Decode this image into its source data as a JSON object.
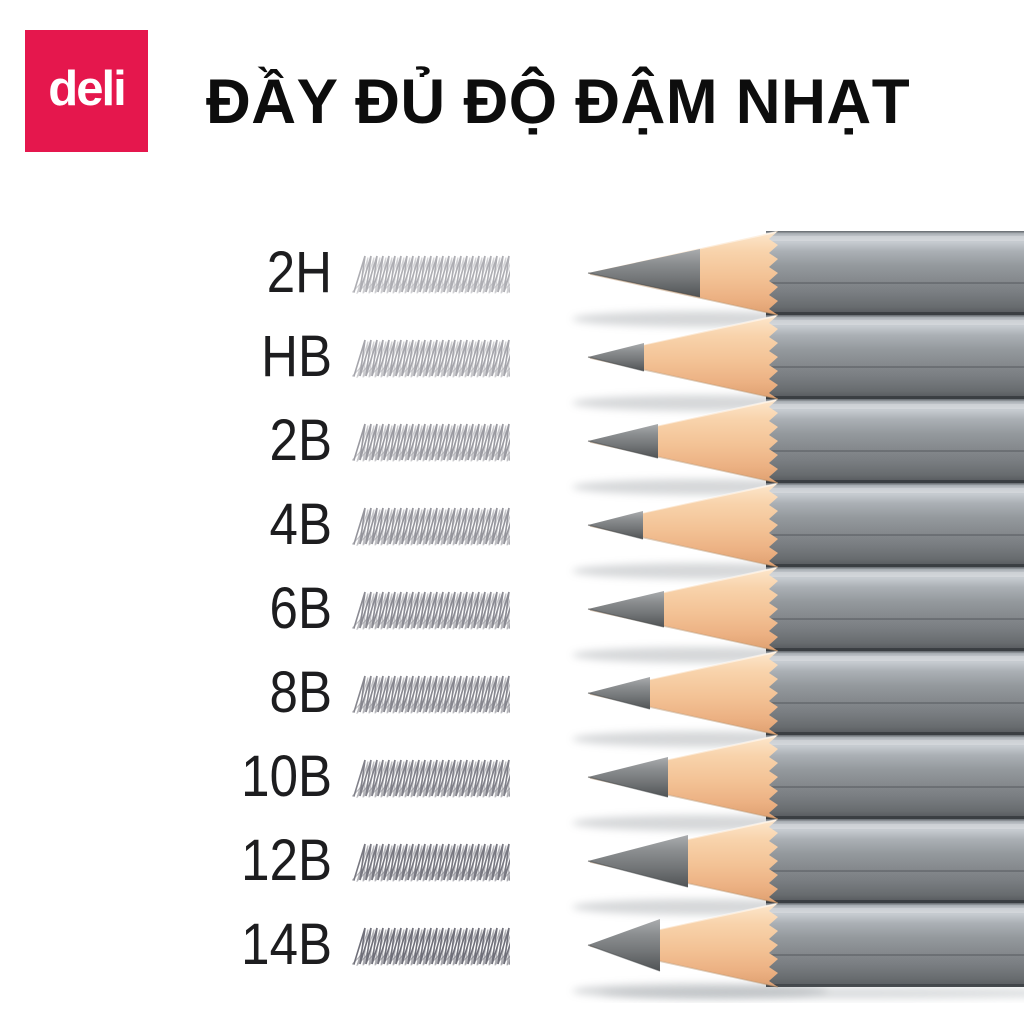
{
  "logo": {
    "text": "deli",
    "bg_color": "#e5174d",
    "text_color": "#ffffff"
  },
  "header": {
    "title": "ĐẦY ĐỦ ĐỘ ĐẬM NHẠT",
    "text_color": "#0d0d0d"
  },
  "rows": [
    {
      "grade": "2H",
      "stroke_darkness": 0.42,
      "tip": {
        "graphite_len": 112,
        "graphite_half": 24
      }
    },
    {
      "grade": "HB",
      "stroke_darkness": 0.46,
      "tip": {
        "graphite_len": 56,
        "graphite_half": 14
      }
    },
    {
      "grade": "2B",
      "stroke_darkness": 0.52,
      "tip": {
        "graphite_len": 70,
        "graphite_half": 17
      }
    },
    {
      "grade": "4B",
      "stroke_darkness": 0.55,
      "tip": {
        "graphite_len": 55,
        "graphite_half": 14
      }
    },
    {
      "grade": "6B",
      "stroke_darkness": 0.6,
      "tip": {
        "graphite_len": 76,
        "graphite_half": 18
      }
    },
    {
      "grade": "8B",
      "stroke_darkness": 0.62,
      "tip": {
        "graphite_len": 62,
        "graphite_half": 16
      }
    },
    {
      "grade": "10B",
      "stroke_darkness": 0.65,
      "tip": {
        "graphite_len": 80,
        "graphite_half": 20
      }
    },
    {
      "grade": "12B",
      "stroke_darkness": 0.7,
      "tip": {
        "graphite_len": 100,
        "graphite_half": 26
      }
    },
    {
      "grade": "14B",
      "stroke_darkness": 0.74,
      "tip": {
        "graphite_len": 72,
        "graphite_half": 26
      }
    }
  ],
  "colors": {
    "accent": "#e5174d",
    "pencil_body": "#8d9296",
    "wood": "#f3c89e",
    "graphite": "#7c7f81",
    "stroke_ink": "#3f3f4c",
    "background": "#ffffff"
  }
}
